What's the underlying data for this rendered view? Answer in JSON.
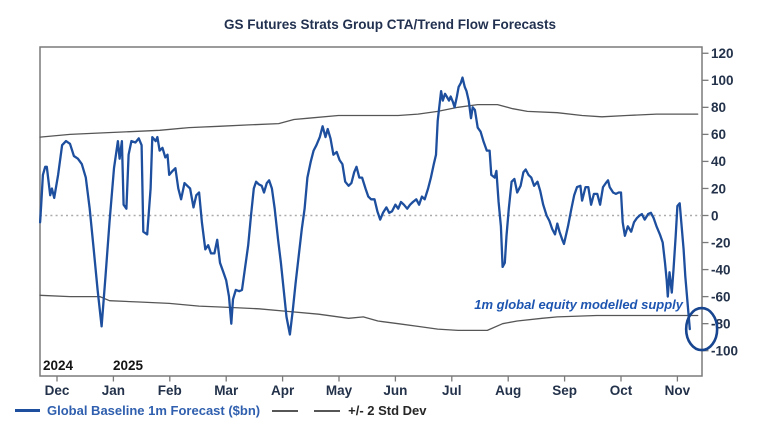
{
  "title": "GS Futures Strats Group CTA/Trend Flow Forecasts",
  "legend": {
    "forecast": "Global Baseline 1m Forecast ($bn)",
    "band": "+/- 2 Std Dev"
  },
  "colors": {
    "forecast": "#1d4f9e",
    "band": "#565656",
    "frame": "#7a7a7a",
    "zero_line": "#ababab",
    "title": "#223150",
    "axis_text": "#23324a",
    "year_text": "#141414",
    "legend_forecast_text": "#2f5fae",
    "legend_band_text": "#262626",
    "annotation_text": "#1d55b0",
    "ellipse": "#17458f"
  },
  "chart_data": {
    "type": "line",
    "title": "GS Futures Strats Group CTA/Trend Flow Forecasts",
    "x_axis": {
      "unit": "months since Dec-2024 tick",
      "tick_labels": [
        "Dec",
        "Jan",
        "Feb",
        "Mar",
        "Apr",
        "May",
        "Jun",
        "Jul",
        "Aug",
        "Sep",
        "Oct",
        "Nov"
      ],
      "year_markers": [
        "2024",
        "2025"
      ]
    },
    "y_axis": {
      "ticks": [
        120,
        100,
        80,
        60,
        40,
        20,
        0,
        -20,
        -40,
        -60,
        -80,
        -100
      ],
      "range": [
        -100,
        120
      ],
      "side": "right"
    },
    "zero_line": "dotted",
    "legend_position": "bottom-left",
    "annotation": {
      "text": "1m global equity modelled supply",
      "highlight_ellipse": {
        "x_month": 11.43,
        "y_value": -84
      }
    },
    "series": [
      {
        "name": "Global Baseline 1m Forecast ($bn)",
        "role": "forecast",
        "color": "#1d4f9e",
        "points": [
          [
            -0.3,
            -5
          ],
          [
            -0.28,
            8
          ],
          [
            -0.25,
            30
          ],
          [
            -0.21,
            36
          ],
          [
            -0.18,
            36
          ],
          [
            -0.12,
            15
          ],
          [
            -0.09,
            20
          ],
          [
            -0.05,
            13
          ],
          [
            0.02,
            30
          ],
          [
            0.09,
            52
          ],
          [
            0.16,
            55
          ],
          [
            0.23,
            53
          ],
          [
            0.3,
            44
          ],
          [
            0.37,
            42
          ],
          [
            0.44,
            38
          ],
          [
            0.51,
            28
          ],
          [
            0.58,
            5
          ],
          [
            0.65,
            -25
          ],
          [
            0.72,
            -55
          ],
          [
            0.79,
            -82
          ],
          [
            0.86,
            -45
          ],
          [
            0.93,
            -5
          ],
          [
            1.01,
            35
          ],
          [
            1.08,
            55
          ],
          [
            1.11,
            42
          ],
          [
            1.15,
            55
          ],
          [
            1.18,
            8
          ],
          [
            1.23,
            5
          ],
          [
            1.27,
            45
          ],
          [
            1.32,
            55
          ],
          [
            1.39,
            54
          ],
          [
            1.45,
            57
          ],
          [
            1.5,
            52
          ],
          [
            1.53,
            -12
          ],
          [
            1.6,
            -14
          ],
          [
            1.66,
            20
          ],
          [
            1.69,
            58
          ],
          [
            1.75,
            55
          ],
          [
            1.78,
            58
          ],
          [
            1.82,
            48
          ],
          [
            1.87,
            50
          ],
          [
            1.92,
            43
          ],
          [
            1.96,
            45
          ],
          [
            1.99,
            30
          ],
          [
            2.05,
            33
          ],
          [
            2.1,
            35
          ],
          [
            2.15,
            20
          ],
          [
            2.2,
            12
          ],
          [
            2.26,
            24
          ],
          [
            2.31,
            22
          ],
          [
            2.36,
            20
          ],
          [
            2.42,
            6
          ],
          [
            2.47,
            15
          ],
          [
            2.52,
            17
          ],
          [
            2.57,
            -5
          ],
          [
            2.63,
            -25
          ],
          [
            2.68,
            -22
          ],
          [
            2.73,
            -28
          ],
          [
            2.79,
            -28
          ],
          [
            2.84,
            -18
          ],
          [
            2.89,
            -35
          ],
          [
            2.95,
            -42
          ],
          [
            3.0,
            -48
          ],
          [
            3.05,
            -60
          ],
          [
            3.09,
            -80
          ],
          [
            3.12,
            -62
          ],
          [
            3.17,
            -55
          ],
          [
            3.23,
            -56
          ],
          [
            3.28,
            -55
          ],
          [
            3.33,
            -40
          ],
          [
            3.39,
            -22
          ],
          [
            3.44,
            0
          ],
          [
            3.49,
            20
          ],
          [
            3.53,
            25
          ],
          [
            3.58,
            23
          ],
          [
            3.63,
            22
          ],
          [
            3.67,
            17
          ],
          [
            3.72,
            24
          ],
          [
            3.76,
            26
          ],
          [
            3.81,
            20
          ],
          [
            3.86,
            5
          ],
          [
            3.92,
            -18
          ],
          [
            3.97,
            -35
          ],
          [
            4.02,
            -55
          ],
          [
            4.07,
            -75
          ],
          [
            4.13,
            -88
          ],
          [
            4.18,
            -70
          ],
          [
            4.23,
            -50
          ],
          [
            4.29,
            -28
          ],
          [
            4.34,
            -10
          ],
          [
            4.39,
            5
          ],
          [
            4.44,
            28
          ],
          [
            4.5,
            40
          ],
          [
            4.55,
            48
          ],
          [
            4.6,
            52
          ],
          [
            4.66,
            58
          ],
          [
            4.71,
            66
          ],
          [
            4.76,
            58
          ],
          [
            4.8,
            64
          ],
          [
            4.85,
            57
          ],
          [
            4.9,
            45
          ],
          [
            4.96,
            47
          ],
          [
            5.01,
            41
          ],
          [
            5.06,
            38
          ],
          [
            5.11,
            25
          ],
          [
            5.17,
            22
          ],
          [
            5.22,
            24
          ],
          [
            5.27,
            32
          ],
          [
            5.31,
            36
          ],
          [
            5.36,
            28
          ],
          [
            5.41,
            28
          ],
          [
            5.47,
            20
          ],
          [
            5.52,
            14
          ],
          [
            5.57,
            12
          ],
          [
            5.63,
            12
          ],
          [
            5.68,
            3
          ],
          [
            5.73,
            -3
          ],
          [
            5.78,
            2
          ],
          [
            5.84,
            6
          ],
          [
            5.89,
            2
          ],
          [
            5.94,
            3
          ],
          [
            6.0,
            8
          ],
          [
            6.05,
            5
          ],
          [
            6.1,
            10
          ],
          [
            6.15,
            8
          ],
          [
            6.21,
            5
          ],
          [
            6.26,
            8
          ],
          [
            6.31,
            10
          ],
          [
            6.37,
            12
          ],
          [
            6.42,
            8
          ],
          [
            6.47,
            14
          ],
          [
            6.52,
            12
          ],
          [
            6.58,
            20
          ],
          [
            6.63,
            28
          ],
          [
            6.68,
            38
          ],
          [
            6.72,
            45
          ],
          [
            6.75,
            70
          ],
          [
            6.79,
            85
          ],
          [
            6.81,
            92
          ],
          [
            6.84,
            85
          ],
          [
            6.88,
            90
          ],
          [
            6.91,
            88
          ],
          [
            6.95,
            85
          ],
          [
            6.98,
            88
          ],
          [
            7.02,
            84
          ],
          [
            7.05,
            80
          ],
          [
            7.09,
            88
          ],
          [
            7.12,
            95
          ],
          [
            7.16,
            98
          ],
          [
            7.19,
            102
          ],
          [
            7.23,
            95
          ],
          [
            7.26,
            92
          ],
          [
            7.3,
            85
          ],
          [
            7.34,
            72
          ],
          [
            7.37,
            80
          ],
          [
            7.41,
            78
          ],
          [
            7.46,
            65
          ],
          [
            7.51,
            62
          ],
          [
            7.56,
            55
          ],
          [
            7.62,
            48
          ],
          [
            7.67,
            48
          ],
          [
            7.7,
            30
          ],
          [
            7.76,
            28
          ],
          [
            7.79,
            33
          ],
          [
            7.83,
            10
          ],
          [
            7.87,
            -8
          ],
          [
            7.9,
            -38
          ],
          [
            7.94,
            -35
          ],
          [
            7.97,
            -15
          ],
          [
            8.01,
            5
          ],
          [
            8.06,
            25
          ],
          [
            8.11,
            27
          ],
          [
            8.16,
            17
          ],
          [
            8.22,
            22
          ],
          [
            8.27,
            32
          ],
          [
            8.31,
            34
          ],
          [
            8.36,
            30
          ],
          [
            8.41,
            28
          ],
          [
            8.46,
            22
          ],
          [
            8.52,
            25
          ],
          [
            8.57,
            18
          ],
          [
            8.62,
            8
          ],
          [
            8.68,
            0
          ],
          [
            8.73,
            -4
          ],
          [
            8.78,
            -10
          ],
          [
            8.83,
            -14
          ],
          [
            8.87,
            -6
          ],
          [
            8.91,
            -12
          ],
          [
            8.96,
            -18
          ],
          [
            8.99,
            -21
          ],
          [
            9.06,
            -8
          ],
          [
            9.12,
            5
          ],
          [
            9.17,
            15
          ],
          [
            9.22,
            21
          ],
          [
            9.28,
            22
          ],
          [
            9.31,
            11
          ],
          [
            9.37,
            21
          ],
          [
            9.42,
            21
          ],
          [
            9.47,
            8
          ],
          [
            9.52,
            16
          ],
          [
            9.58,
            16
          ],
          [
            9.63,
            8
          ],
          [
            9.68,
            21
          ],
          [
            9.73,
            24
          ],
          [
            9.77,
            26
          ],
          [
            9.8,
            21
          ],
          [
            9.86,
            17
          ],
          [
            9.91,
            16
          ],
          [
            9.96,
            17
          ],
          [
            10.0,
            17
          ],
          [
            10.03,
            -5
          ],
          [
            10.07,
            -15
          ],
          [
            10.12,
            -8
          ],
          [
            10.18,
            -12
          ],
          [
            10.23,
            -5
          ],
          [
            10.28,
            -2
          ],
          [
            10.33,
            0
          ],
          [
            10.37,
            1
          ],
          [
            10.42,
            -3
          ],
          [
            10.48,
            1
          ],
          [
            10.53,
            2
          ],
          [
            10.58,
            -2
          ],
          [
            10.63,
            -8
          ],
          [
            10.69,
            -14
          ],
          [
            10.74,
            -20
          ],
          [
            10.78,
            -35
          ],
          [
            10.81,
            -48
          ],
          [
            10.83,
            -60
          ],
          [
            10.86,
            -42
          ],
          [
            10.9,
            -57
          ],
          [
            10.93,
            -40
          ],
          [
            10.97,
            -15
          ],
          [
            11.0,
            7
          ],
          [
            11.04,
            9
          ],
          [
            11.07,
            -5
          ],
          [
            11.11,
            -25
          ],
          [
            11.14,
            -45
          ],
          [
            11.18,
            -65
          ],
          [
            11.22,
            -84
          ]
        ]
      },
      {
        "name": "+2 Std Dev",
        "role": "band",
        "color": "#565656",
        "points": [
          [
            -0.3,
            58
          ],
          [
            0.23,
            60
          ],
          [
            0.76,
            61
          ],
          [
            1.29,
            62
          ],
          [
            1.82,
            63
          ],
          [
            2.34,
            65
          ],
          [
            2.87,
            66
          ],
          [
            3.4,
            67
          ],
          [
            3.93,
            68
          ],
          [
            4.2,
            71
          ],
          [
            4.46,
            72
          ],
          [
            4.99,
            74
          ],
          [
            5.52,
            74
          ],
          [
            6.05,
            74
          ],
          [
            6.4,
            75
          ],
          [
            6.75,
            77
          ],
          [
            7.11,
            80
          ],
          [
            7.46,
            82
          ],
          [
            7.81,
            82
          ],
          [
            8.08,
            79
          ],
          [
            8.34,
            77
          ],
          [
            8.87,
            76
          ],
          [
            9.31,
            74
          ],
          [
            9.66,
            73
          ],
          [
            10.1,
            74
          ],
          [
            10.63,
            75
          ],
          [
            11.36,
            75
          ]
        ]
      },
      {
        "name": "-2 Std Dev",
        "role": "band",
        "color": "#565656",
        "points": [
          [
            -0.3,
            -59
          ],
          [
            0.23,
            -60
          ],
          [
            0.76,
            -60
          ],
          [
            0.93,
            -63
          ],
          [
            1.46,
            -64
          ],
          [
            1.99,
            -65
          ],
          [
            2.52,
            -67
          ],
          [
            3.05,
            -68
          ],
          [
            3.58,
            -69
          ],
          [
            4.11,
            -71
          ],
          [
            4.64,
            -73
          ],
          [
            5.17,
            -76
          ],
          [
            5.43,
            -75
          ],
          [
            5.69,
            -78
          ],
          [
            6.05,
            -80
          ],
          [
            6.4,
            -82
          ],
          [
            6.75,
            -84
          ],
          [
            7.11,
            -85
          ],
          [
            7.63,
            -85
          ],
          [
            7.9,
            -80
          ],
          [
            8.16,
            -78
          ],
          [
            8.6,
            -76
          ],
          [
            8.87,
            -75
          ],
          [
            9.57,
            -74
          ],
          [
            10.28,
            -74
          ],
          [
            10.98,
            -74
          ],
          [
            11.36,
            -74
          ]
        ]
      }
    ]
  }
}
